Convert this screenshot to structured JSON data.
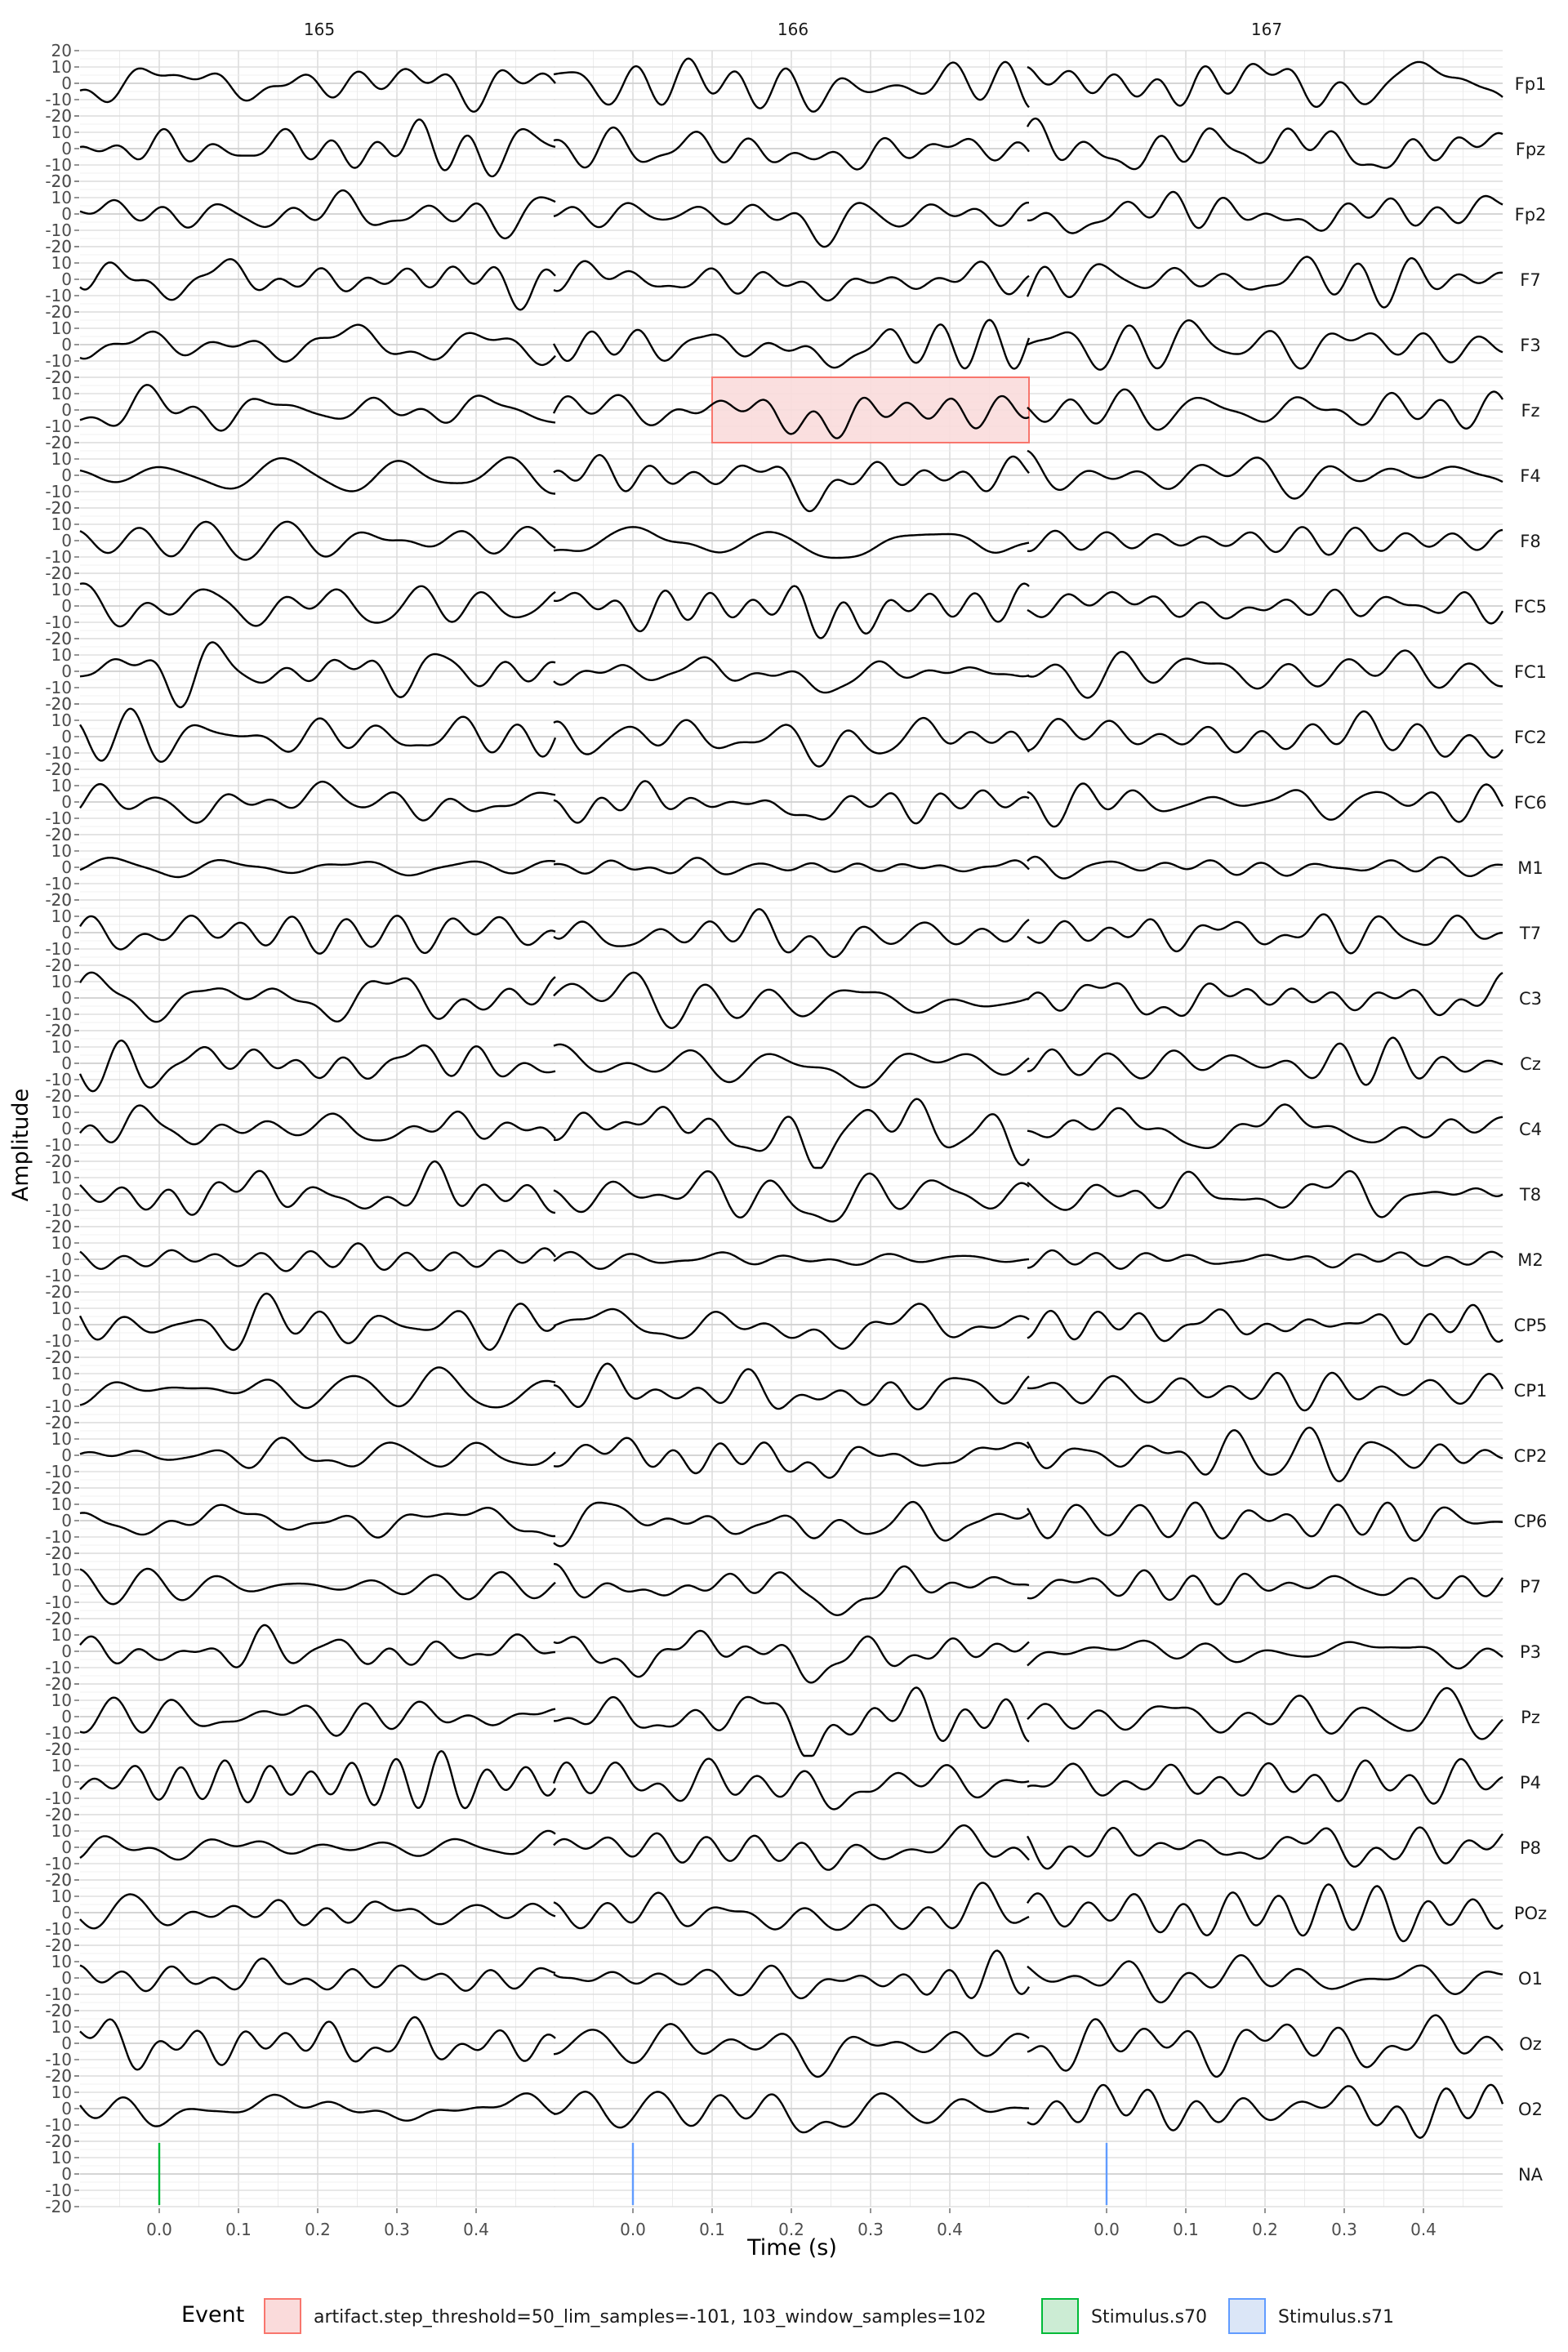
{
  "chart_data": {
    "type": "line",
    "title": "",
    "xlabel": "Time (s)",
    "ylabel": "Amplitude",
    "xlim": [
      -0.1,
      0.5
    ],
    "ylim_per_channel": [
      -20,
      20
    ],
    "y_ticks": [
      "20",
      "10",
      "0",
      "-10",
      "-20"
    ],
    "x_ticks": [
      "0.0",
      "0.1",
      "0.2",
      "0.3",
      "0.4"
    ],
    "x_tick_values": [
      0.0,
      0.1,
      0.2,
      0.3,
      0.4
    ],
    "epochs": [
      "165",
      "166",
      "167"
    ],
    "channels": [
      "Fp1",
      "Fpz",
      "Fp2",
      "F7",
      "F3",
      "Fz",
      "F4",
      "F8",
      "FC5",
      "FC1",
      "FC2",
      "FC6",
      "M1",
      "T7",
      "C3",
      "Cz",
      "C4",
      "T8",
      "M2",
      "CP5",
      "CP1",
      "CP2",
      "CP6",
      "P7",
      "P3",
      "Pz",
      "P4",
      "P8",
      "POz",
      "O1",
      "Oz",
      "O2",
      "NA"
    ],
    "grid": true,
    "events": [
      {
        "epoch": "165",
        "channel": "NA",
        "time": 0.0,
        "type": "Stimulus.s70"
      },
      {
        "epoch": "166",
        "channel": "NA",
        "time": 0.0,
        "type": "Stimulus.s71"
      },
      {
        "epoch": "167",
        "channel": "NA",
        "time": 0.0,
        "type": "Stimulus.s71"
      },
      {
        "epoch": "166",
        "channel": "Fz",
        "time_start": 0.1,
        "time_end": 0.5,
        "type": "artifact.step_threshold=50_lim_samples=-101, 103_window_samples=102"
      }
    ],
    "legend": {
      "title": "Event",
      "position": "bottom",
      "entries": [
        {
          "label": "artifact.step_threshold=50_lim_samples=-101, 103_window_samples=102",
          "fill": "#fadbdb",
          "stroke": "#f8766d"
        },
        {
          "label": "Stimulus.s70",
          "fill": "#ccecd4",
          "stroke": "#00ba38"
        },
        {
          "label": "Stimulus.s71",
          "fill": "#dbe6f7",
          "stroke": "#619cff"
        }
      ]
    },
    "colors": {
      "trace": "#000000",
      "grid_major": "#d9d9d9",
      "grid_minor": "#ececec",
      "stim_s70": "#00ba38",
      "stim_s71": "#619cff",
      "artifact": "#f8766d"
    }
  }
}
